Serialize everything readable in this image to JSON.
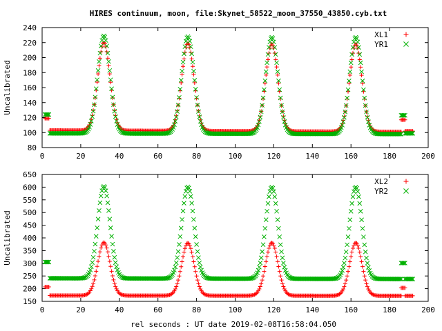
{
  "figure": {
    "title": "HIRES continuum, moon, file:Skynet_58522_moon_37550_43850.cyb.txt",
    "xlabel": "rel seconds : UT date 2019-02-08T16:58:04.050"
  },
  "colors": {
    "red": "#ff0000",
    "green": "#00b000",
    "axis": "#000000"
  },
  "chart_data": [
    {
      "type": "scatter",
      "ylabel": "Uncalibrated",
      "xlim": [
        0,
        200
      ],
      "ylim": [
        80,
        240
      ],
      "xticks": [
        0,
        20,
        40,
        60,
        80,
        100,
        120,
        140,
        160,
        180,
        200
      ],
      "yticks": [
        80,
        100,
        120,
        140,
        160,
        180,
        200,
        220,
        240
      ],
      "grid": false,
      "legend_position": "top-right",
      "series": [
        {
          "name": "XL1",
          "marker": "+",
          "color": "#ff0000",
          "segments": [
            {
              "x_range": [
                1.5,
                3.5
              ],
              "baseline": 119
            },
            {
              "x_range": [
                4,
                186
              ],
              "baseline": 103,
              "baseline_end": 101,
              "peaks": [
                {
                  "x": 32,
                  "y": 220
                },
                {
                  "x": 75.5,
                  "y": 219
                },
                {
                  "x": 119,
                  "y": 218
                },
                {
                  "x": 162.5,
                  "y": 218
                }
              ],
              "peak_width": 3.2
            },
            {
              "x_range": [
                186,
                188
              ],
              "baseline": 117
            },
            {
              "x_range": [
                188,
                192
              ],
              "baseline": 102
            }
          ]
        },
        {
          "name": "YR1",
          "marker": "x",
          "color": "#00b000",
          "segments": [
            {
              "x_range": [
                1.5,
                3.5
              ],
              "baseline": 124
            },
            {
              "x_range": [
                4,
                186
              ],
              "baseline": 99,
              "baseline_end": 98,
              "peaks": [
                {
                  "x": 32,
                  "y": 229
                },
                {
                  "x": 75.5,
                  "y": 228
                },
                {
                  "x": 119,
                  "y": 227
                },
                {
                  "x": 162.5,
                  "y": 227
                }
              ],
              "peak_width": 3.2
            },
            {
              "x_range": [
                186,
                188
              ],
              "baseline": 123
            },
            {
              "x_range": [
                188,
                192
              ],
              "baseline": 99
            }
          ]
        }
      ]
    },
    {
      "type": "scatter",
      "ylabel": "Uncalibrated",
      "xlim": [
        0,
        200
      ],
      "ylim": [
        150,
        650
      ],
      "xticks": [
        0,
        20,
        40,
        60,
        80,
        100,
        120,
        140,
        160,
        180,
        200
      ],
      "yticks": [
        150,
        200,
        250,
        300,
        350,
        400,
        450,
        500,
        550,
        600,
        650
      ],
      "grid": false,
      "legend_position": "top-right",
      "series": [
        {
          "name": "XL2",
          "marker": "+",
          "color": "#ff0000",
          "segments": [
            {
              "x_range": [
                1.5,
                3.5
              ],
              "baseline": 207
            },
            {
              "x_range": [
                4,
                186
              ],
              "baseline": 173,
              "baseline_end": 172,
              "peaks": [
                {
                  "x": 32,
                  "y": 382
                },
                {
                  "x": 75.5,
                  "y": 380
                },
                {
                  "x": 119,
                  "y": 381
                },
                {
                  "x": 162.5,
                  "y": 381
                }
              ],
              "peak_width": 3.2
            },
            {
              "x_range": [
                186,
                188
              ],
              "baseline": 203
            },
            {
              "x_range": [
                188,
                192
              ],
              "baseline": 172
            }
          ]
        },
        {
          "name": "YR2",
          "marker": "x",
          "color": "#00b000",
          "segments": [
            {
              "x_range": [
                1.5,
                3.5
              ],
              "baseline": 305
            },
            {
              "x_range": [
                4,
                186
              ],
              "baseline": 241,
              "baseline_end": 238,
              "peaks": [
                {
                  "x": 32,
                  "y": 603
                },
                {
                  "x": 75.5,
                  "y": 601
                },
                {
                  "x": 119,
                  "y": 600
                },
                {
                  "x": 162.5,
                  "y": 600
                }
              ],
              "peak_width": 3.2
            },
            {
              "x_range": [
                186,
                188
              ],
              "baseline": 301
            },
            {
              "x_range": [
                188,
                192
              ],
              "baseline": 238
            }
          ]
        }
      ]
    }
  ]
}
